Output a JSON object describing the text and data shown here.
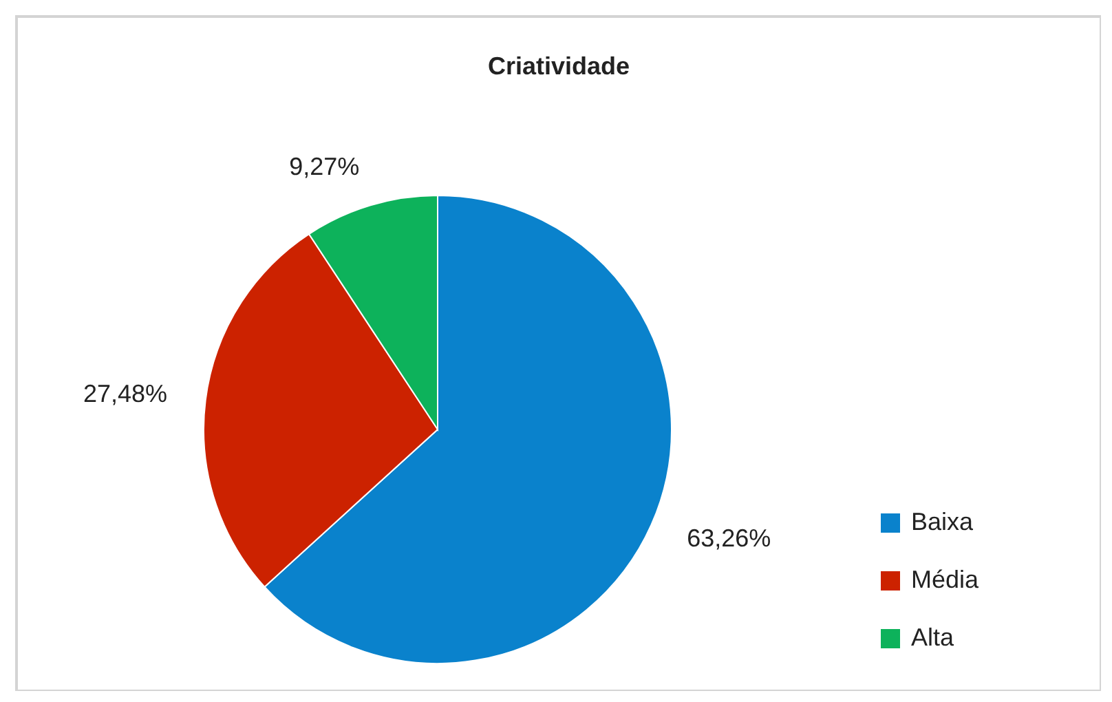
{
  "chart_data": {
    "type": "pie",
    "title": "Criatividade",
    "categories": [
      "Baixa",
      "Média",
      "Alta"
    ],
    "values": [
      63.26,
      27.48,
      9.27
    ],
    "value_labels": [
      "63,26%",
      "27,48%",
      "9,27%"
    ],
    "colors": [
      "#0a82cc",
      "#cc2200",
      "#0db25b"
    ],
    "legend": "right"
  }
}
